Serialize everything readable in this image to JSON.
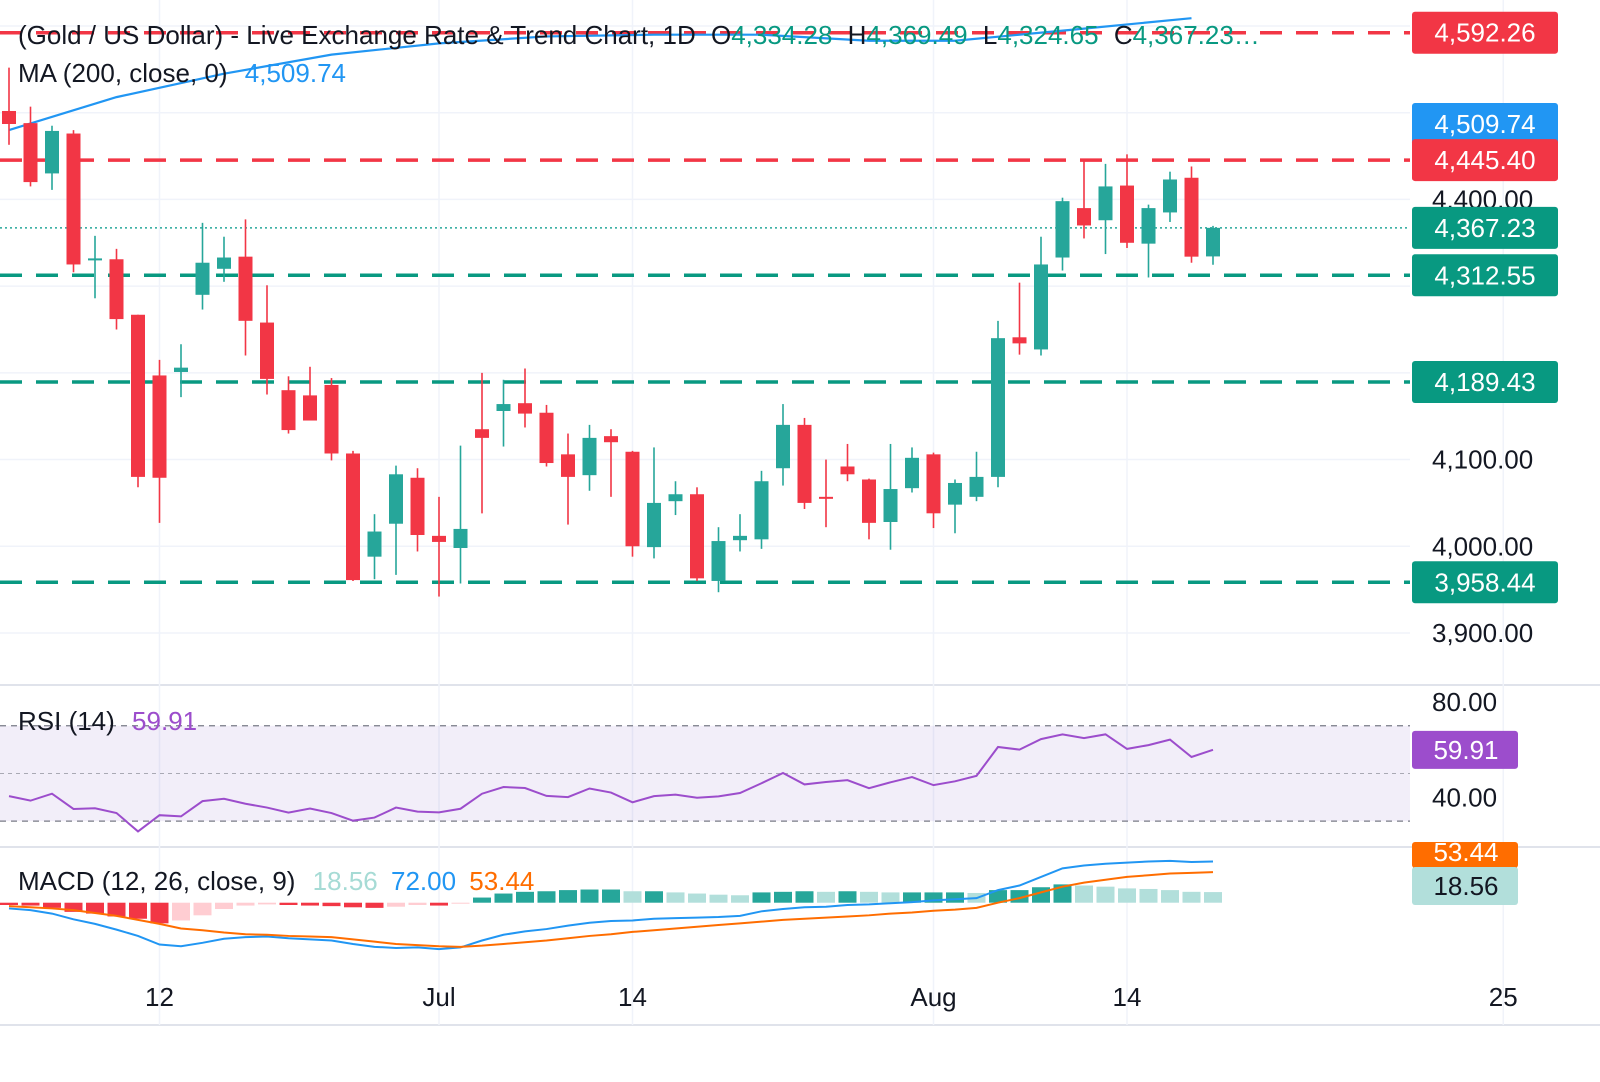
{
  "header": {
    "symbol_title": "(Gold / US Dollar) - Live Exchange Rate & Trend Chart, 1D",
    "ohlc": [
      {
        "key": "O",
        "value": "4,334.28"
      },
      {
        "key": "H",
        "value": "4,369.49"
      },
      {
        "key": "L",
        "value": "4,324.65"
      },
      {
        "key": "C",
        "value": "4,367.23…"
      }
    ],
    "ma_label": "MA (200, close, 0)",
    "ma_value": "4,509.74"
  },
  "colors": {
    "up": "#26a69a",
    "down": "#f23645",
    "ma": "#2196f3",
    "rsi": "#9c4dcc",
    "macd": "#2196f3",
    "signal": "#ff6d00",
    "level_red": "#f23645",
    "level_green": "#089981",
    "price_axis_text": "#131722"
  },
  "chart_data": {
    "type": "candlestick",
    "price_axis": {
      "range": [
        3840,
        4630
      ],
      "ticks": [
        "4,400.00",
        "4,100.00",
        "4,000.00",
        "3,900.00"
      ],
      "tick_values": [
        4400,
        4100,
        4000,
        3900
      ]
    },
    "x_axis": {
      "ticks": [
        {
          "label": "12",
          "index": 7
        },
        {
          "label": "Jul",
          "index": 20
        },
        {
          "label": "14",
          "index": 29
        },
        {
          "label": "Aug",
          "index": 43
        },
        {
          "label": "14",
          "index": 52
        },
        {
          "label": "25",
          "index": 69.5
        }
      ]
    },
    "candles": [
      {
        "o": 4502,
        "h": 4552,
        "l": 4463,
        "c": 4487
      },
      {
        "o": 4488,
        "h": 4507,
        "l": 4415,
        "c": 4420
      },
      {
        "o": 4430,
        "h": 4485,
        "l": 4411,
        "c": 4479
      },
      {
        "o": 4476,
        "h": 4480,
        "l": 4316,
        "c": 4325
      },
      {
        "o": 4331,
        "h": 4358,
        "l": 4286,
        "c": 4332
      },
      {
        "o": 4331,
        "h": 4343,
        "l": 4250,
        "c": 4262
      },
      {
        "o": 4267,
        "h": 4267,
        "l": 4068,
        "c": 4080
      },
      {
        "o": 4197,
        "h": 4215,
        "l": 4027,
        "c": 4079
      },
      {
        "o": 4201,
        "h": 4233,
        "l": 4172,
        "c": 4206
      },
      {
        "o": 4290,
        "h": 4373,
        "l": 4273,
        "c": 4327
      },
      {
        "o": 4320,
        "h": 4357,
        "l": 4305,
        "c": 4333
      },
      {
        "o": 4334,
        "h": 4377,
        "l": 4220,
        "c": 4260
      },
      {
        "o": 4258,
        "h": 4301,
        "l": 4175,
        "c": 4193
      },
      {
        "o": 4180,
        "h": 4196,
        "l": 4130,
        "c": 4134
      },
      {
        "o": 4174,
        "h": 4207,
        "l": 4146,
        "c": 4145
      },
      {
        "o": 4186,
        "h": 4194,
        "l": 4099,
        "c": 4107
      },
      {
        "o": 4107,
        "h": 4110,
        "l": 3960,
        "c": 3961
      },
      {
        "o": 3988,
        "h": 4037,
        "l": 3962,
        "c": 4017
      },
      {
        "o": 4026,
        "h": 4093,
        "l": 3967,
        "c": 4083
      },
      {
        "o": 4079,
        "h": 4090,
        "l": 3994,
        "c": 4013
      },
      {
        "o": 4012,
        "h": 4057,
        "l": 3942,
        "c": 4005
      },
      {
        "o": 3998,
        "h": 4116,
        "l": 3957,
        "c": 4020
      },
      {
        "o": 4135,
        "h": 4200,
        "l": 4038,
        "c": 4125
      },
      {
        "o": 4156,
        "h": 4192,
        "l": 4115,
        "c": 4164
      },
      {
        "o": 4165,
        "h": 4205,
        "l": 4137,
        "c": 4153
      },
      {
        "o": 4154,
        "h": 4163,
        "l": 4092,
        "c": 4096
      },
      {
        "o": 4106,
        "h": 4130,
        "l": 4025,
        "c": 4080
      },
      {
        "o": 4082,
        "h": 4140,
        "l": 4064,
        "c": 4125
      },
      {
        "o": 4127,
        "h": 4135,
        "l": 4057,
        "c": 4120
      },
      {
        "o": 4109,
        "h": 4110,
        "l": 3988,
        "c": 4000
      },
      {
        "o": 3999,
        "h": 4114,
        "l": 3986,
        "c": 4050
      },
      {
        "o": 4052,
        "h": 4075,
        "l": 4036,
        "c": 4060
      },
      {
        "o": 4060,
        "h": 4068,
        "l": 3960,
        "c": 3963
      },
      {
        "o": 3960,
        "h": 4022,
        "l": 3947,
        "c": 4006
      },
      {
        "o": 4007,
        "h": 4037,
        "l": 3994,
        "c": 4012
      },
      {
        "o": 4008,
        "h": 4087,
        "l": 3997,
        "c": 4075
      },
      {
        "o": 4090,
        "h": 4164,
        "l": 4070,
        "c": 4140
      },
      {
        "o": 4140,
        "h": 4148,
        "l": 4043,
        "c": 4050
      },
      {
        "o": 4057,
        "h": 4100,
        "l": 4022,
        "c": 4055
      },
      {
        "o": 4092,
        "h": 4118,
        "l": 4075,
        "c": 4083
      },
      {
        "o": 4077,
        "h": 4078,
        "l": 4008,
        "c": 4027
      },
      {
        "o": 4028,
        "h": 4118,
        "l": 3996,
        "c": 4066
      },
      {
        "o": 4067,
        "h": 4114,
        "l": 4062,
        "c": 4102
      },
      {
        "o": 4106,
        "h": 4108,
        "l": 4021,
        "c": 4038
      },
      {
        "o": 4048,
        "h": 4077,
        "l": 4015,
        "c": 4073
      },
      {
        "o": 4057,
        "h": 4109,
        "l": 4052,
        "c": 4080
      },
      {
        "o": 4080,
        "h": 4260,
        "l": 4068,
        "c": 4240
      },
      {
        "o": 4241,
        "h": 4304,
        "l": 4221,
        "c": 4234
      },
      {
        "o": 4227,
        "h": 4357,
        "l": 4220,
        "c": 4325
      },
      {
        "o": 4333,
        "h": 4402,
        "l": 4318,
        "c": 4398
      },
      {
        "o": 4390,
        "h": 4445,
        "l": 4355,
        "c": 4370
      },
      {
        "o": 4376,
        "h": 4441,
        "l": 4337,
        "c": 4415
      },
      {
        "o": 4416,
        "h": 4452,
        "l": 4344,
        "c": 4350
      },
      {
        "o": 4349,
        "h": 4394,
        "l": 4310,
        "c": 4390
      },
      {
        "o": 4385,
        "h": 4432,
        "l": 4374,
        "c": 4423
      },
      {
        "o": 4425,
        "h": 4438,
        "l": 4327,
        "c": 4334
      },
      {
        "o": 4334.28,
        "h": 4369.49,
        "l": 4324.65,
        "c": 4367.23
      }
    ],
    "ma200": {
      "label": "MA (200, close, 0)",
      "x": [
        0,
        5,
        10,
        15,
        20,
        25,
        30,
        35,
        40,
        44,
        50,
        55
      ],
      "values": [
        4480,
        4518,
        4545,
        4567,
        4580,
        4588,
        4590,
        4590,
        4583,
        4583,
        4597,
        4609
      ]
    },
    "levels": [
      {
        "value": 4592.26,
        "label": "4,592.26",
        "color": "red",
        "dashed": true
      },
      {
        "value": 4509.74,
        "label": "4,509.74",
        "color": "blue",
        "dashed": false
      },
      {
        "value": 4445.4,
        "label": "4,445.40",
        "color": "red",
        "dashed": true
      },
      {
        "value": 4367.23,
        "label": "4,367.23",
        "color": "green",
        "dashed": false,
        "dotted": true
      },
      {
        "value": 4312.55,
        "label": "4,312.55",
        "color": "green",
        "dashed": true
      },
      {
        "value": 4189.43,
        "label": "4,189.43",
        "color": "green",
        "dashed": true
      },
      {
        "value": 3958.44,
        "label": "3,958.44",
        "color": "green",
        "dashed": true
      }
    ],
    "rsi": {
      "label": "RSI (14)",
      "value_label": "59.91",
      "range": [
        20,
        85
      ],
      "ticks": [
        "80.00",
        "40.00"
      ],
      "tick_values": [
        80,
        40
      ],
      "band": [
        30,
        70
      ],
      "values": [
        40.5,
        38.6,
        41.5,
        35.1,
        35.4,
        33.4,
        25.7,
        32.5,
        32.0,
        38.4,
        39.4,
        37.3,
        35.7,
        33.6,
        35.3,
        33.4,
        30.2,
        31.5,
        35.7,
        34.0,
        33.7,
        35.2,
        41.5,
        44.3,
        43.9,
        40.6,
        40.1,
        43.7,
        42.0,
        37.9,
        40.5,
        41.1,
        39.8,
        40.4,
        41.8,
        45.9,
        50.2,
        45.4,
        46.4,
        47.2,
        43.8,
        46.3,
        48.5,
        45.1,
        46.7,
        49.0,
        61.1,
        60.0,
        64.4,
        66.4,
        64.8,
        66.4,
        60.3,
        61.9,
        64.2,
        56.9,
        59.91
      ]
    },
    "macd": {
      "label": "MACD (12, 26, close, 9)",
      "histogram_label": "18.56",
      "macd_label": "72.00",
      "signal_label": "53.44",
      "range": [
        -100,
        92
      ],
      "macd": [
        -10,
        -13,
        -19,
        -29,
        -37,
        -47,
        -58,
        -73,
        -76,
        -70,
        -63,
        -60,
        -59,
        -62,
        -64,
        -66,
        -72,
        -77,
        -79,
        -78,
        -81,
        -78,
        -66,
        -56,
        -50,
        -46,
        -40,
        -35,
        -32,
        -31,
        -28,
        -27,
        -26,
        -25,
        -23,
        -15,
        -11,
        -8,
        -7,
        -4,
        -3,
        -1,
        1,
        4,
        6,
        8,
        22,
        30,
        45,
        60,
        65,
        68,
        70,
        72,
        73,
        71,
        72.0
      ],
      "signal": [
        -6,
        -8,
        -10,
        -13,
        -18,
        -23,
        -30,
        -37,
        -45,
        -48,
        -52,
        -55,
        -56,
        -58,
        -59,
        -60,
        -64,
        -68,
        -72,
        -74,
        -76,
        -77,
        -75,
        -72,
        -69,
        -66,
        -62,
        -58,
        -55,
        -51,
        -48,
        -45,
        -42,
        -39,
        -36,
        -33,
        -30,
        -28,
        -26,
        -24,
        -22,
        -19,
        -17,
        -14,
        -12,
        -9,
        0,
        8,
        18,
        28,
        35,
        40,
        45,
        48,
        51,
        52,
        53.44
      ],
      "histogram": [
        -4,
        -5,
        -9,
        -16,
        -19,
        -24,
        -28,
        -36,
        -31,
        -22,
        -11,
        -5,
        -3,
        -4,
        -5,
        -6,
        -8,
        -9,
        -7,
        -4,
        -5,
        -1,
        9,
        16,
        19,
        20,
        22,
        23,
        23,
        20,
        20,
        18,
        16,
        14,
        13,
        18,
        19,
        20,
        19,
        20,
        19,
        18,
        18,
        18,
        18,
        17,
        22,
        22,
        27,
        32,
        30,
        28,
        25,
        24,
        22,
        19,
        18.56
      ]
    }
  }
}
